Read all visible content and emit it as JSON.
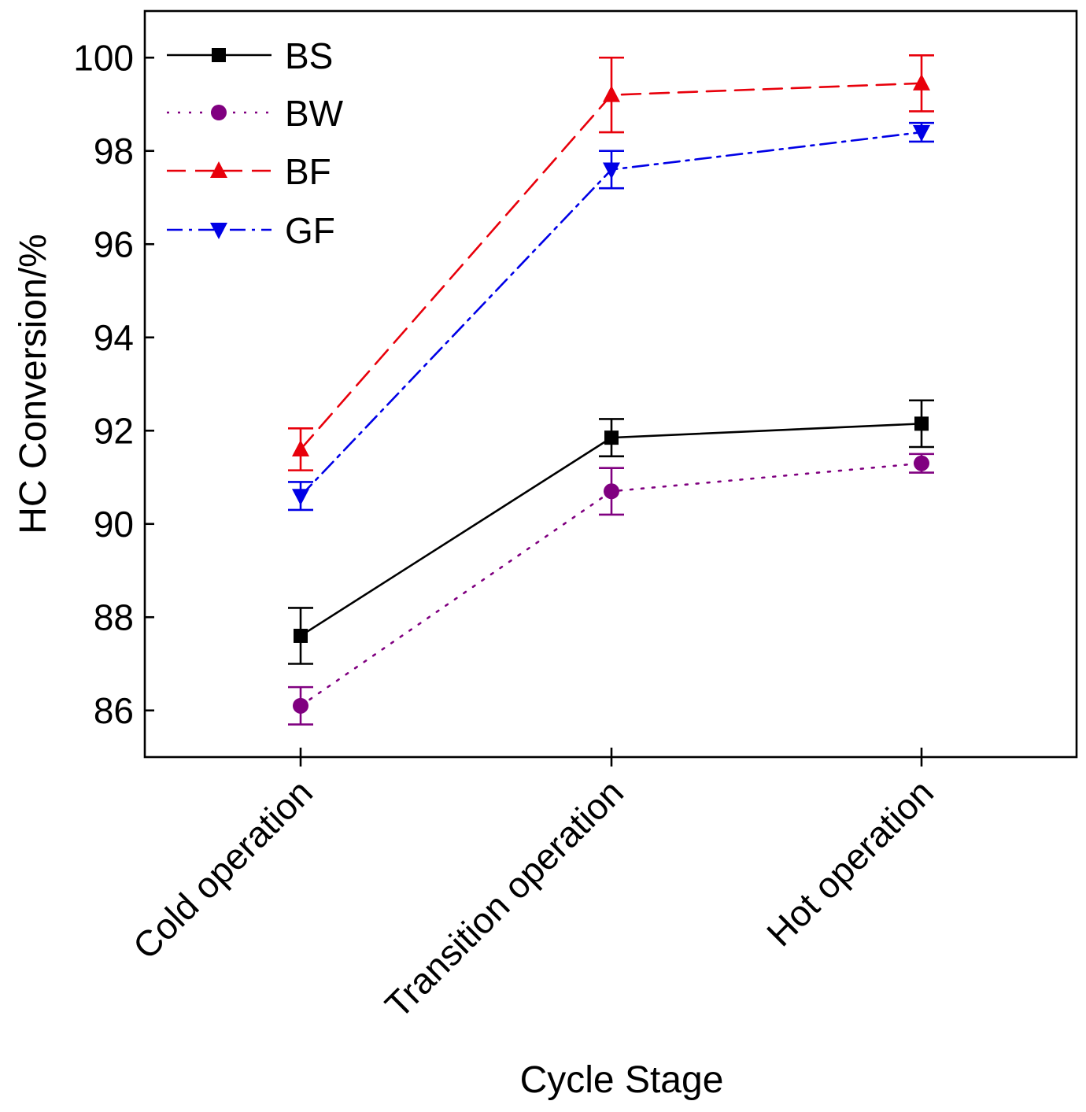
{
  "chart_data": {
    "type": "line",
    "title": "",
    "xlabel": "Cycle Stage",
    "ylabel": "HC Conversion/%",
    "categories": [
      "Cold operation",
      "Transition operation",
      "Hot operation"
    ],
    "ylim": [
      85,
      101
    ],
    "yticks": [
      86,
      88,
      90,
      92,
      94,
      96,
      98,
      100
    ],
    "grid": false,
    "legend_position": "top-left",
    "series": [
      {
        "name": "BS",
        "color": "#000000",
        "marker": "square",
        "line_style": "solid",
        "values": [
          87.6,
          91.85,
          92.15
        ],
        "errors": [
          0.6,
          0.4,
          0.5
        ]
      },
      {
        "name": "BW",
        "color": "#800080",
        "marker": "circle",
        "line_style": "dotted",
        "values": [
          86.1,
          90.7,
          91.3
        ],
        "errors": [
          0.4,
          0.5,
          0.2
        ]
      },
      {
        "name": "BF",
        "color": "#e8000b",
        "marker": "triangle-up",
        "line_style": "dashed",
        "values": [
          91.6,
          99.2,
          99.45
        ],
        "errors": [
          0.45,
          0.8,
          0.6
        ]
      },
      {
        "name": "GF",
        "color": "#0000e6",
        "marker": "triangle-down",
        "line_style": "dash-dot",
        "values": [
          90.6,
          97.6,
          98.4
        ],
        "errors": [
          0.3,
          0.4,
          0.2
        ]
      }
    ]
  }
}
